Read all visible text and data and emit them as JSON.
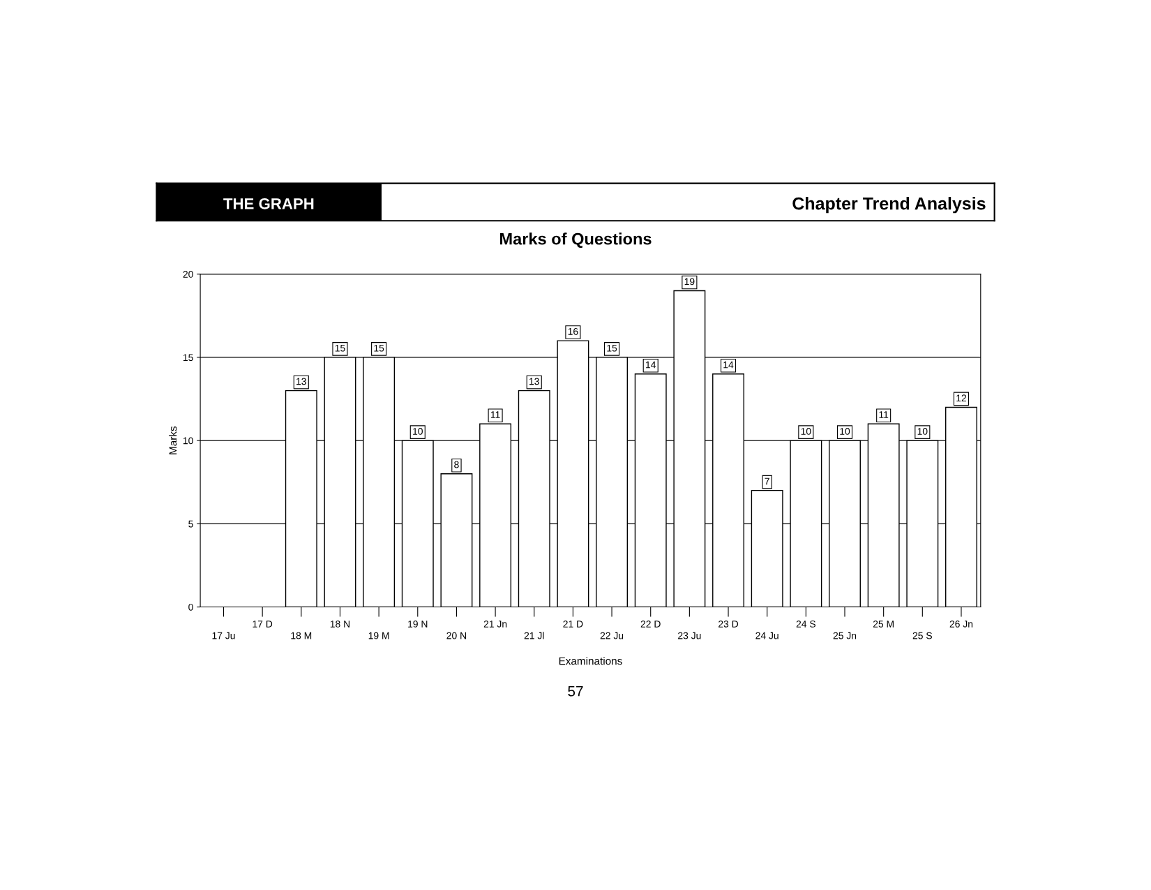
{
  "chart_data": {
    "type": "bar",
    "title": "Marks of Questions",
    "xlabel": "Examinations",
    "ylabel": "Marks",
    "categories": [
      "17 Ju",
      "17 D",
      "18 M",
      "18 N",
      "19 M",
      "19 N",
      "20 N",
      "21 Jn",
      "21 Jl",
      "21 D",
      "22 Ju",
      "22 D",
      "23 Ju",
      "23 D",
      "24 Ju",
      "24 S",
      "25 Jn",
      "25 M",
      "25 S",
      "26 Jn"
    ],
    "values": [
      null,
      null,
      13,
      15,
      15,
      10,
      8,
      11,
      13,
      16,
      15,
      14,
      19,
      14,
      7,
      10,
      10,
      11,
      10,
      12
    ],
    "color": "#ffffff",
    "ylim": [
      0,
      20
    ],
    "yticks": [
      0,
      5,
      10,
      15,
      20
    ],
    "grid": "y",
    "data_labels": true,
    "annotations": [
      "THE GRAPH",
      "Chapter Trend Analysis",
      "57"
    ]
  }
}
